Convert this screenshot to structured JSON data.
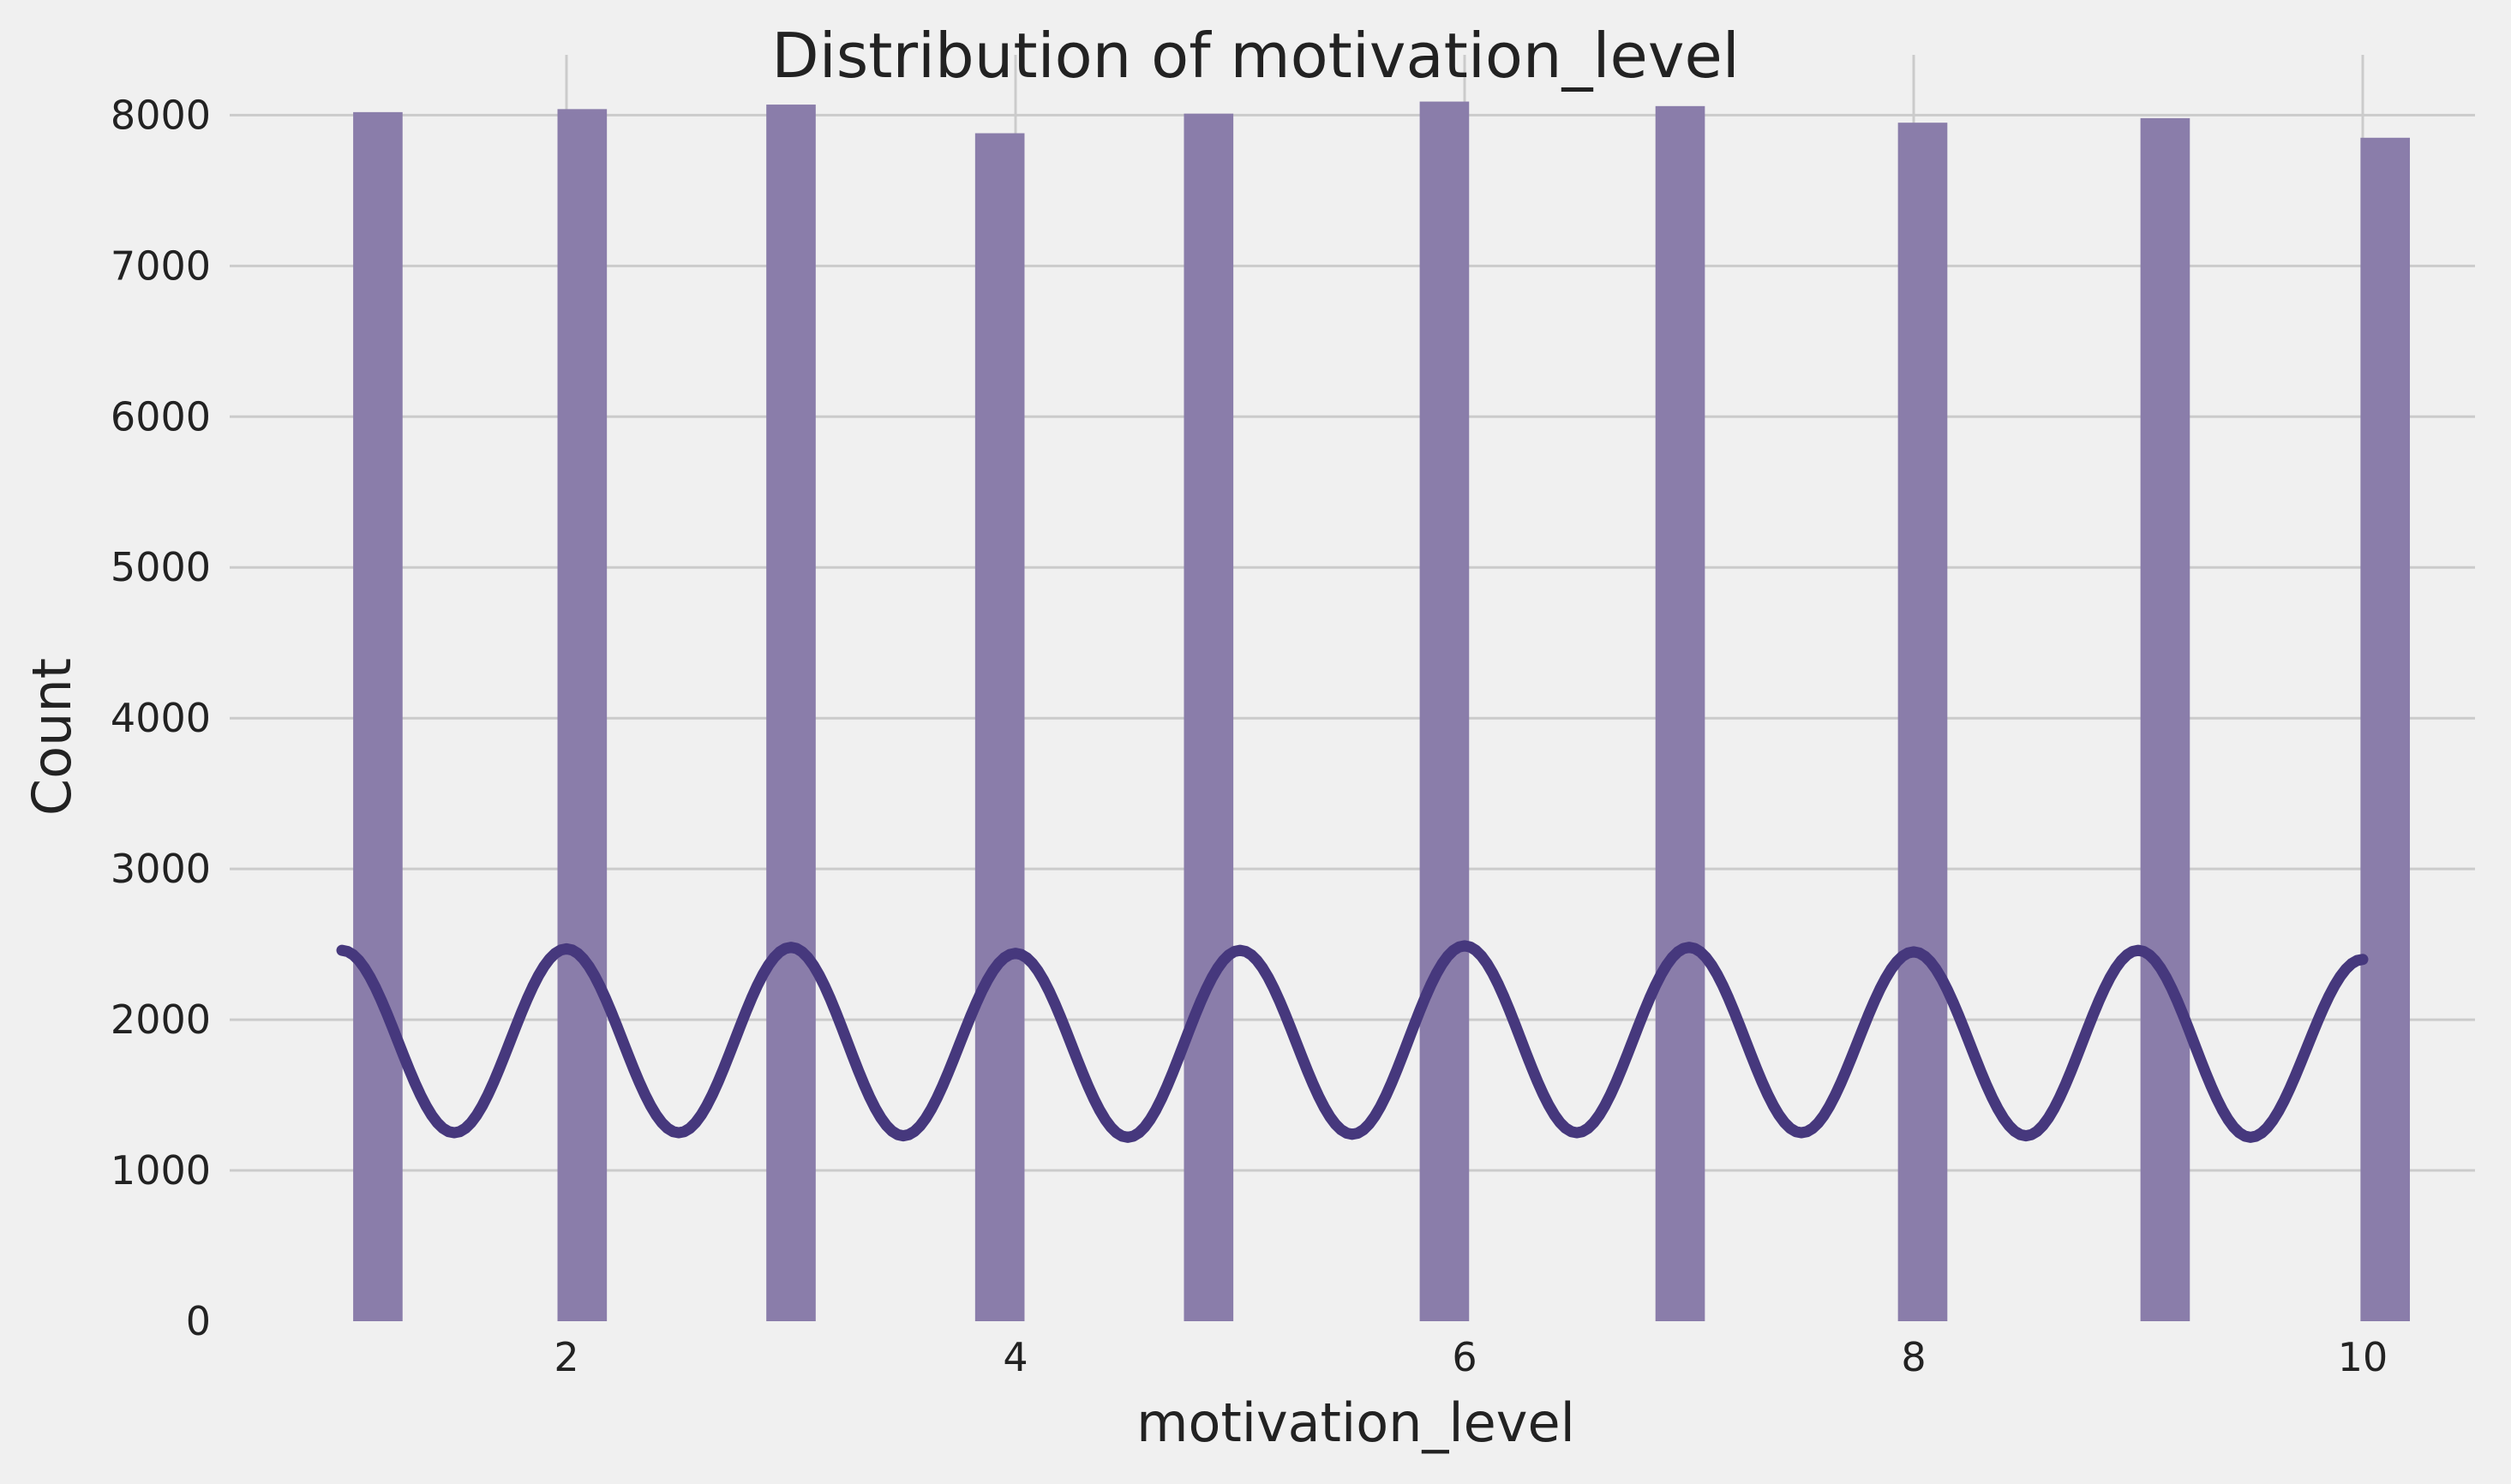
{
  "chart_data": {
    "type": "bar",
    "title": "Distribution of motivation_level",
    "xlabel": "motivation_level",
    "ylabel": "Count",
    "xlim": [
      0.5,
      10.5
    ],
    "ylim": [
      0,
      8400
    ],
    "grid": true,
    "x_ticks": [
      2,
      4,
      6,
      8,
      10
    ],
    "y_ticks": [
      0,
      1000,
      2000,
      3000,
      4000,
      5000,
      6000,
      7000,
      8000
    ],
    "bar_color": "#8a7daa",
    "kde_color": "#46387d",
    "background_color": "#f0f0f0",
    "categories": [
      1,
      2,
      3,
      4,
      5,
      6,
      7,
      8,
      9,
      10
    ],
    "values": [
      8020,
      8040,
      8070,
      7880,
      8010,
      8090,
      8060,
      7950,
      7980,
      7850
    ],
    "kde": {
      "peaks": [
        2460,
        2470,
        2480,
        2440,
        2460,
        2490,
        2480,
        2450,
        2460,
        2400
      ],
      "troughs": [
        1250,
        1250,
        1230,
        1220,
        1240,
        1250,
        1250,
        1230,
        1220
      ]
    }
  }
}
